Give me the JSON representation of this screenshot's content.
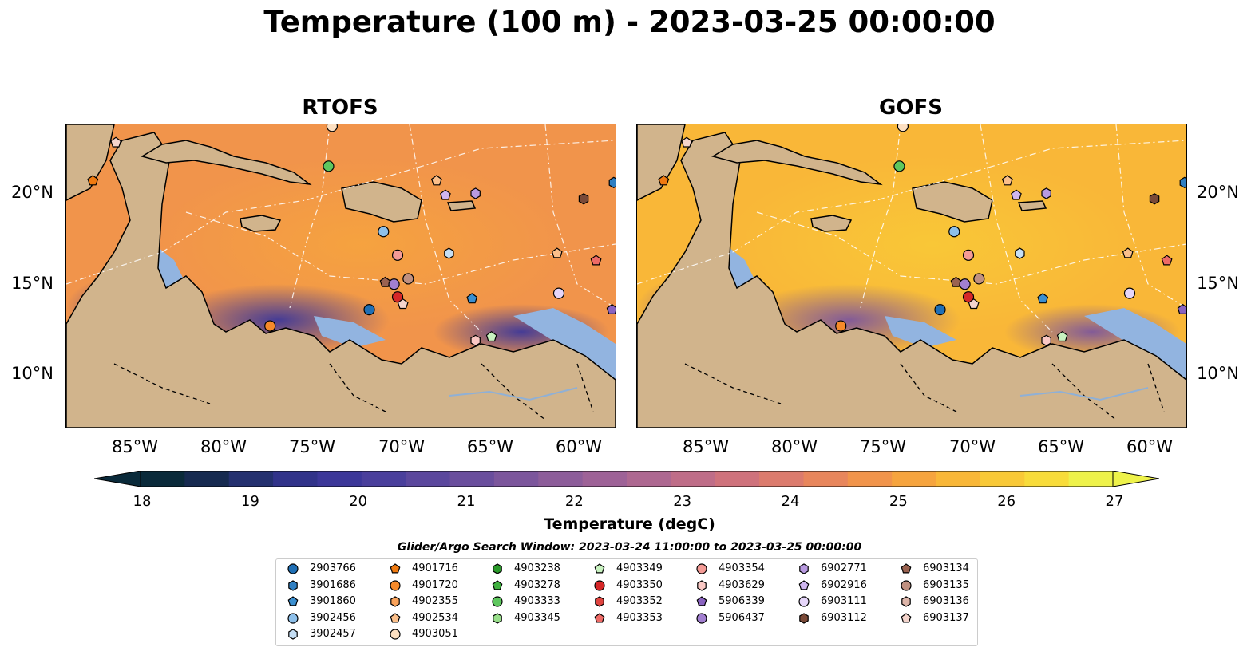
{
  "figure_title": "Temperature (100 m) - 2023-03-25 00:00:00",
  "panels": [
    {
      "id": "rtofs",
      "title": "RTOFS"
    },
    {
      "id": "gofs",
      "title": "GOFS"
    }
  ],
  "axes": {
    "lon_labels": [
      "85°W",
      "80°W",
      "75°W",
      "70°W",
      "65°W",
      "60°W"
    ],
    "lat_labels": [
      "20°N",
      "15°N",
      "10°N"
    ],
    "extent": {
      "lon_min": -89,
      "lon_max": -58,
      "lat_min": 7,
      "lat_max": 23.7
    }
  },
  "colorbar": {
    "label": "Temperature (degC)",
    "ticks": [
      "18",
      "19",
      "20",
      "21",
      "22",
      "23",
      "24",
      "25",
      "26",
      "27"
    ],
    "min": 18,
    "max": 27,
    "extend": "both",
    "colors": [
      "#0a2a3a",
      "#162a50",
      "#24306f",
      "#31338a",
      "#3c3799",
      "#4a3f9c",
      "#5b479d",
      "#6a4e9d",
      "#7c569c",
      "#8d5d9a",
      "#9e6297",
      "#ae6891",
      "#bf6d88",
      "#cf727c",
      "#dc7b6d",
      "#e8865c",
      "#f1944b",
      "#f6a43e",
      "#f9b738",
      "#f9c937",
      "#f8dc3a",
      "#eef24a"
    ]
  },
  "legend": {
    "title": "Glider/Argo Search Window: 2023-03-24 11:00:00 to 2023-03-25 00:00:00",
    "items": [
      {
        "id": "2903766",
        "marker": "circle",
        "color": "#1f6fb5"
      },
      {
        "id": "3901686",
        "marker": "hexagon",
        "color": "#2f7fc2"
      },
      {
        "id": "3901860",
        "marker": "pentagon",
        "color": "#3b8fd0"
      },
      {
        "id": "3902456",
        "marker": "circle",
        "color": "#8ec0ea"
      },
      {
        "id": "3902457",
        "marker": "hexagon",
        "color": "#c6dff5"
      },
      {
        "id": "4901716",
        "marker": "pentagon",
        "color": "#f07a10"
      },
      {
        "id": "4901720",
        "marker": "circle",
        "color": "#f68a2a"
      },
      {
        "id": "4902355",
        "marker": "hexagon",
        "color": "#f9a25a"
      },
      {
        "id": "4902534",
        "marker": "pentagon",
        "color": "#fbbf8a"
      },
      {
        "id": "4903051",
        "marker": "circle",
        "color": "#fde0c2"
      },
      {
        "id": "4903238",
        "marker": "hexagon",
        "color": "#2a9a2a"
      },
      {
        "id": "4903278",
        "marker": "pentagon",
        "color": "#40b040"
      },
      {
        "id": "4903333",
        "marker": "circle",
        "color": "#5ec75e"
      },
      {
        "id": "4903345",
        "marker": "hexagon",
        "color": "#98df8a"
      },
      {
        "id": "4903349",
        "marker": "pentagon",
        "color": "#c8f2c0"
      },
      {
        "id": "4903350",
        "marker": "circle",
        "color": "#d62728"
      },
      {
        "id": "4903352",
        "marker": "hexagon",
        "color": "#e0443f"
      },
      {
        "id": "4903353",
        "marker": "pentagon",
        "color": "#ee6a66"
      },
      {
        "id": "4903354",
        "marker": "circle",
        "color": "#f49b96"
      },
      {
        "id": "4903629",
        "marker": "hexagon",
        "color": "#fac8c4"
      },
      {
        "id": "5906339",
        "marker": "pentagon",
        "color": "#8a63c0"
      },
      {
        "id": "5906437",
        "marker": "circle",
        "color": "#a27fd0"
      },
      {
        "id": "6902771",
        "marker": "hexagon",
        "color": "#b89ae0"
      },
      {
        "id": "6902916",
        "marker": "pentagon",
        "color": "#cfb6ef"
      },
      {
        "id": "6903111",
        "marker": "circle",
        "color": "#e6d6fa"
      },
      {
        "id": "6903112",
        "marker": "hexagon",
        "color": "#7a4a38"
      },
      {
        "id": "6903134",
        "marker": "pentagon",
        "color": "#9a6250"
      },
      {
        "id": "6903135",
        "marker": "circle",
        "color": "#c09080"
      },
      {
        "id": "6903136",
        "marker": "hexagon",
        "color": "#dcb4a8"
      },
      {
        "id": "6903137",
        "marker": "pentagon",
        "color": "#f4d4cc"
      }
    ]
  },
  "platforms": [
    {
      "id": "4903051",
      "lon": -74.0,
      "lat": 23.6
    },
    {
      "id": "6903137",
      "lon": -86.2,
      "lat": 22.7
    },
    {
      "id": "4901716",
      "lon": -87.5,
      "lat": 20.6
    },
    {
      "id": "4903333",
      "lon": -74.2,
      "lat": 21.4
    },
    {
      "id": "4902534",
      "lon": -68.1,
      "lat": 20.6
    },
    {
      "id": "6902916",
      "lon": -67.6,
      "lat": 19.8
    },
    {
      "id": "6902771",
      "lon": -65.9,
      "lat": 19.9
    },
    {
      "id": "6903112",
      "lon": -59.8,
      "lat": 19.6
    },
    {
      "id": "3901686",
      "lon": -58.1,
      "lat": 20.5
    },
    {
      "id": "3902456",
      "lon": -71.1,
      "lat": 17.8
    },
    {
      "id": "4903354",
      "lon": -70.3,
      "lat": 16.5
    },
    {
      "id": "3902457",
      "lon": -67.4,
      "lat": 16.6
    },
    {
      "id": "4902534",
      "lon": -61.3,
      "lat": 16.6
    },
    {
      "id": "4903353",
      "lon": -59.1,
      "lat": 16.2
    },
    {
      "id": "6903134",
      "lon": -71.0,
      "lat": 15.0
    },
    {
      "id": "5906437",
      "lon": -70.5,
      "lat": 14.9
    },
    {
      "id": "6903135",
      "lon": -69.7,
      "lat": 15.2
    },
    {
      "id": "4903350",
      "lon": -70.3,
      "lat": 14.2
    },
    {
      "id": "6903137",
      "lon": -70.0,
      "lat": 13.8
    },
    {
      "id": "3901860",
      "lon": -66.1,
      "lat": 14.1
    },
    {
      "id": "6903111",
      "lon": -61.2,
      "lat": 14.4
    },
    {
      "id": "5906339",
      "lon": -58.2,
      "lat": 13.5
    },
    {
      "id": "2903766",
      "lon": -71.9,
      "lat": 13.5
    },
    {
      "id": "4901720",
      "lon": -77.5,
      "lat": 12.6
    },
    {
      "id": "4903629",
      "lon": -65.9,
      "lat": 11.8
    },
    {
      "id": "4903349",
      "lon": -65.0,
      "lat": 12.0
    }
  ]
}
